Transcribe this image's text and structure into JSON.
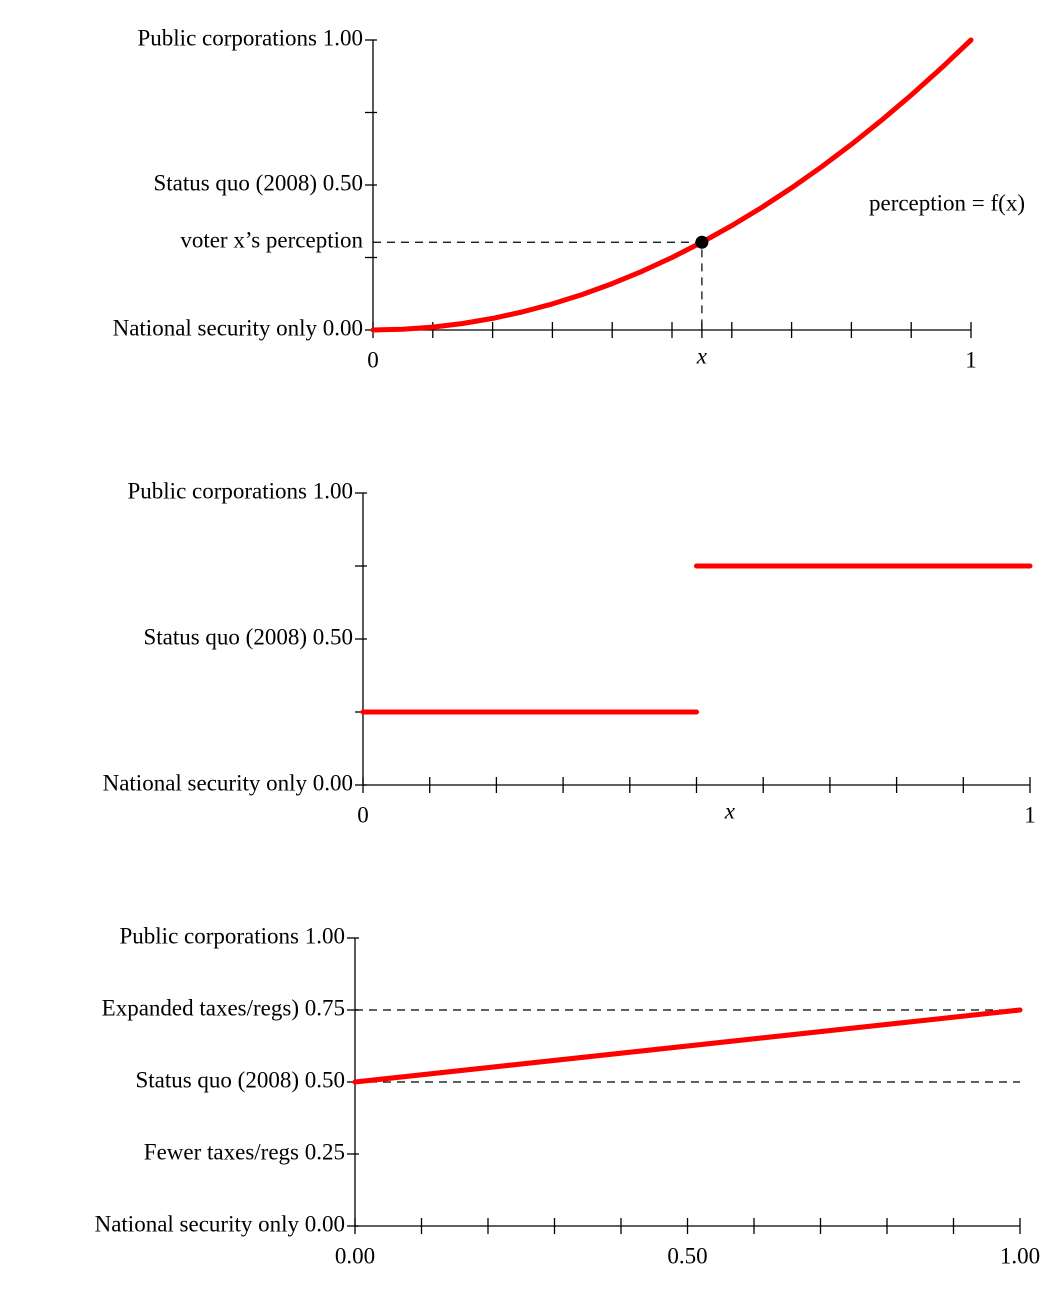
{
  "chart_data": [
    {
      "type": "line",
      "x": [
        0,
        0.05,
        0.1,
        0.15,
        0.2,
        0.25,
        0.3,
        0.35,
        0.4,
        0.45,
        0.5,
        0.55,
        0.6,
        0.65,
        0.7,
        0.75,
        0.8,
        0.85,
        0.9,
        0.95,
        1
      ],
      "values": [
        0,
        0.0025,
        0.01,
        0.0225,
        0.04,
        0.0625,
        0.09,
        0.1225,
        0.16,
        0.2025,
        0.25,
        0.3025,
        0.36,
        0.4225,
        0.49,
        0.5625,
        0.64,
        0.7225,
        0.81,
        0.9025,
        1
      ],
      "color": "#ff0000",
      "xlim": [
        0,
        1
      ],
      "ylim": [
        0,
        1
      ],
      "xticks": [
        0,
        1
      ],
      "xminorticks": [
        0.1,
        0.2,
        0.3,
        0.4,
        0.5,
        0.6,
        0.7,
        0.8,
        0.9
      ],
      "yticks": [
        {
          "value": 0,
          "label": "National security only 0.00"
        },
        {
          "value": 0.5,
          "label": "Status quo (2008) 0.50"
        },
        {
          "value": 1,
          "label": "Public corporations 1.00"
        }
      ],
      "yminorticks": [
        0.25,
        0.75
      ],
      "highlight": {
        "x": 0.55,
        "y": 0.3025,
        "label": "voter x’s perception",
        "xlabel": "x"
      },
      "annotation": "perception = f(x)"
    },
    {
      "type": "line",
      "x": [
        0,
        0.5,
        0.5,
        0.5,
        1
      ],
      "values": [
        0.25,
        0.25,
        null,
        0.75,
        0.75
      ],
      "color": "#ff0000",
      "xlim": [
        0,
        1
      ],
      "ylim": [
        0,
        1
      ],
      "xticks": [
        0,
        1
      ],
      "xminorticks": [
        0.1,
        0.2,
        0.3,
        0.4,
        0.5,
        0.6,
        0.7,
        0.8,
        0.9
      ],
      "yticks": [
        {
          "value": 0,
          "label": "National security only 0.00"
        },
        {
          "value": 0.5,
          "label": "Status quo (2008) 0.50"
        },
        {
          "value": 1,
          "label": "Public corporations 1.00"
        }
      ],
      "yminorticks": [
        0.25,
        0.75
      ],
      "xlabel": "x"
    },
    {
      "type": "line",
      "x": [
        0,
        1
      ],
      "values": [
        0.5,
        0.75
      ],
      "color": "#ff0000",
      "xlim": [
        0,
        1
      ],
      "ylim": [
        0,
        1
      ],
      "xticks": [
        {
          "value": 0,
          "label": "0.00"
        },
        {
          "value": 0.5,
          "label": "0.50"
        },
        {
          "value": 1,
          "label": "1.00"
        }
      ],
      "xminorticks": [
        0.1,
        0.2,
        0.3,
        0.4,
        0.6,
        0.7,
        0.8,
        0.9
      ],
      "yticks": [
        {
          "value": 0,
          "label": "National security only 0.00"
        },
        {
          "value": 0.25,
          "label": "Fewer taxes/regs 0.25"
        },
        {
          "value": 0.5,
          "label": "Status quo (2008) 0.50"
        },
        {
          "value": 0.75,
          "label": "Expanded taxes/regs) 0.75"
        },
        {
          "value": 1,
          "label": "Public corporations 1.00"
        }
      ],
      "hlines": [
        0.5,
        0.75
      ]
    }
  ]
}
